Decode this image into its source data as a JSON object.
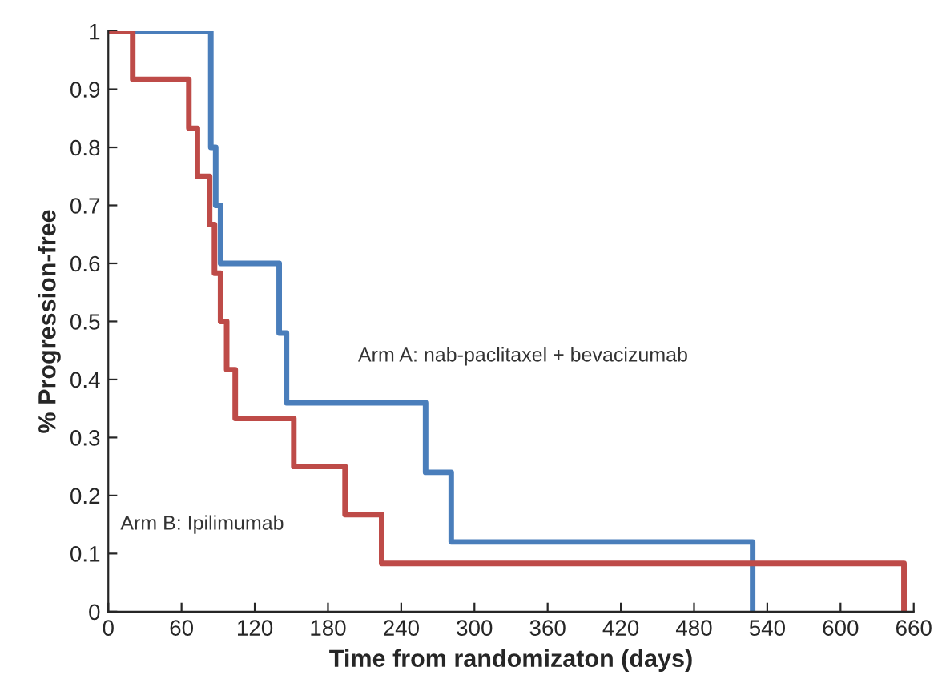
{
  "chart_data": {
    "type": "step",
    "xlabel": "Time from randomizaton (days)",
    "ylabel": "% Progression-free",
    "series": [
      {
        "name": "Arm A: nab-paclitaxel + bevacizumab",
        "color": "#4a7ebb",
        "x": [
          0,
          84,
          88,
          92,
          140,
          146,
          260,
          281,
          528
        ],
        "values": [
          1,
          0.8,
          0.7,
          0.6,
          0.48,
          0.36,
          0.24,
          0.12,
          0
        ]
      },
      {
        "name": "Arm B: Ipilimumab",
        "color": "#be4b48",
        "x": [
          0,
          20,
          66,
          73,
          83,
          87,
          92,
          97,
          104,
          152,
          194,
          224,
          652
        ],
        "values": [
          1,
          0.917,
          0.833,
          0.75,
          0.667,
          0.583,
          0.5,
          0.417,
          0.333,
          0.25,
          0.167,
          0.083,
          0
        ]
      }
    ],
    "xlim": [
      0,
      660
    ],
    "xticks": [
      0,
      60,
      120,
      180,
      240,
      300,
      360,
      420,
      480,
      540,
      600,
      660
    ],
    "ylim": [
      0,
      1
    ],
    "yticks": [
      0,
      0.1,
      0.2,
      0.3,
      0.4,
      0.5,
      0.6,
      0.7,
      0.8,
      0.9,
      1
    ],
    "grid": false
  }
}
